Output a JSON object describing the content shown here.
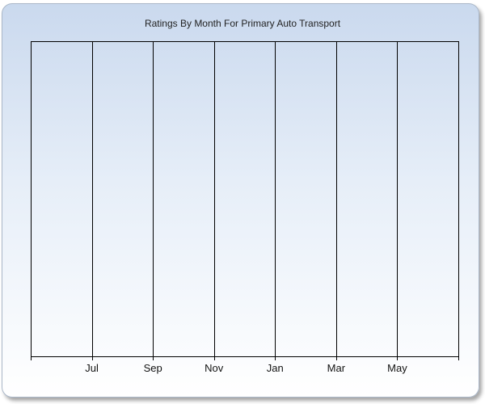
{
  "chart_data": {
    "type": "bar",
    "title": "Ratings By Month For Primary Auto Transport",
    "categories": [
      "Jul",
      "Sep",
      "Nov",
      "Jan",
      "Mar",
      "May"
    ],
    "series": [],
    "xlabel": "",
    "ylabel": "",
    "grid": true,
    "legend": "none"
  }
}
